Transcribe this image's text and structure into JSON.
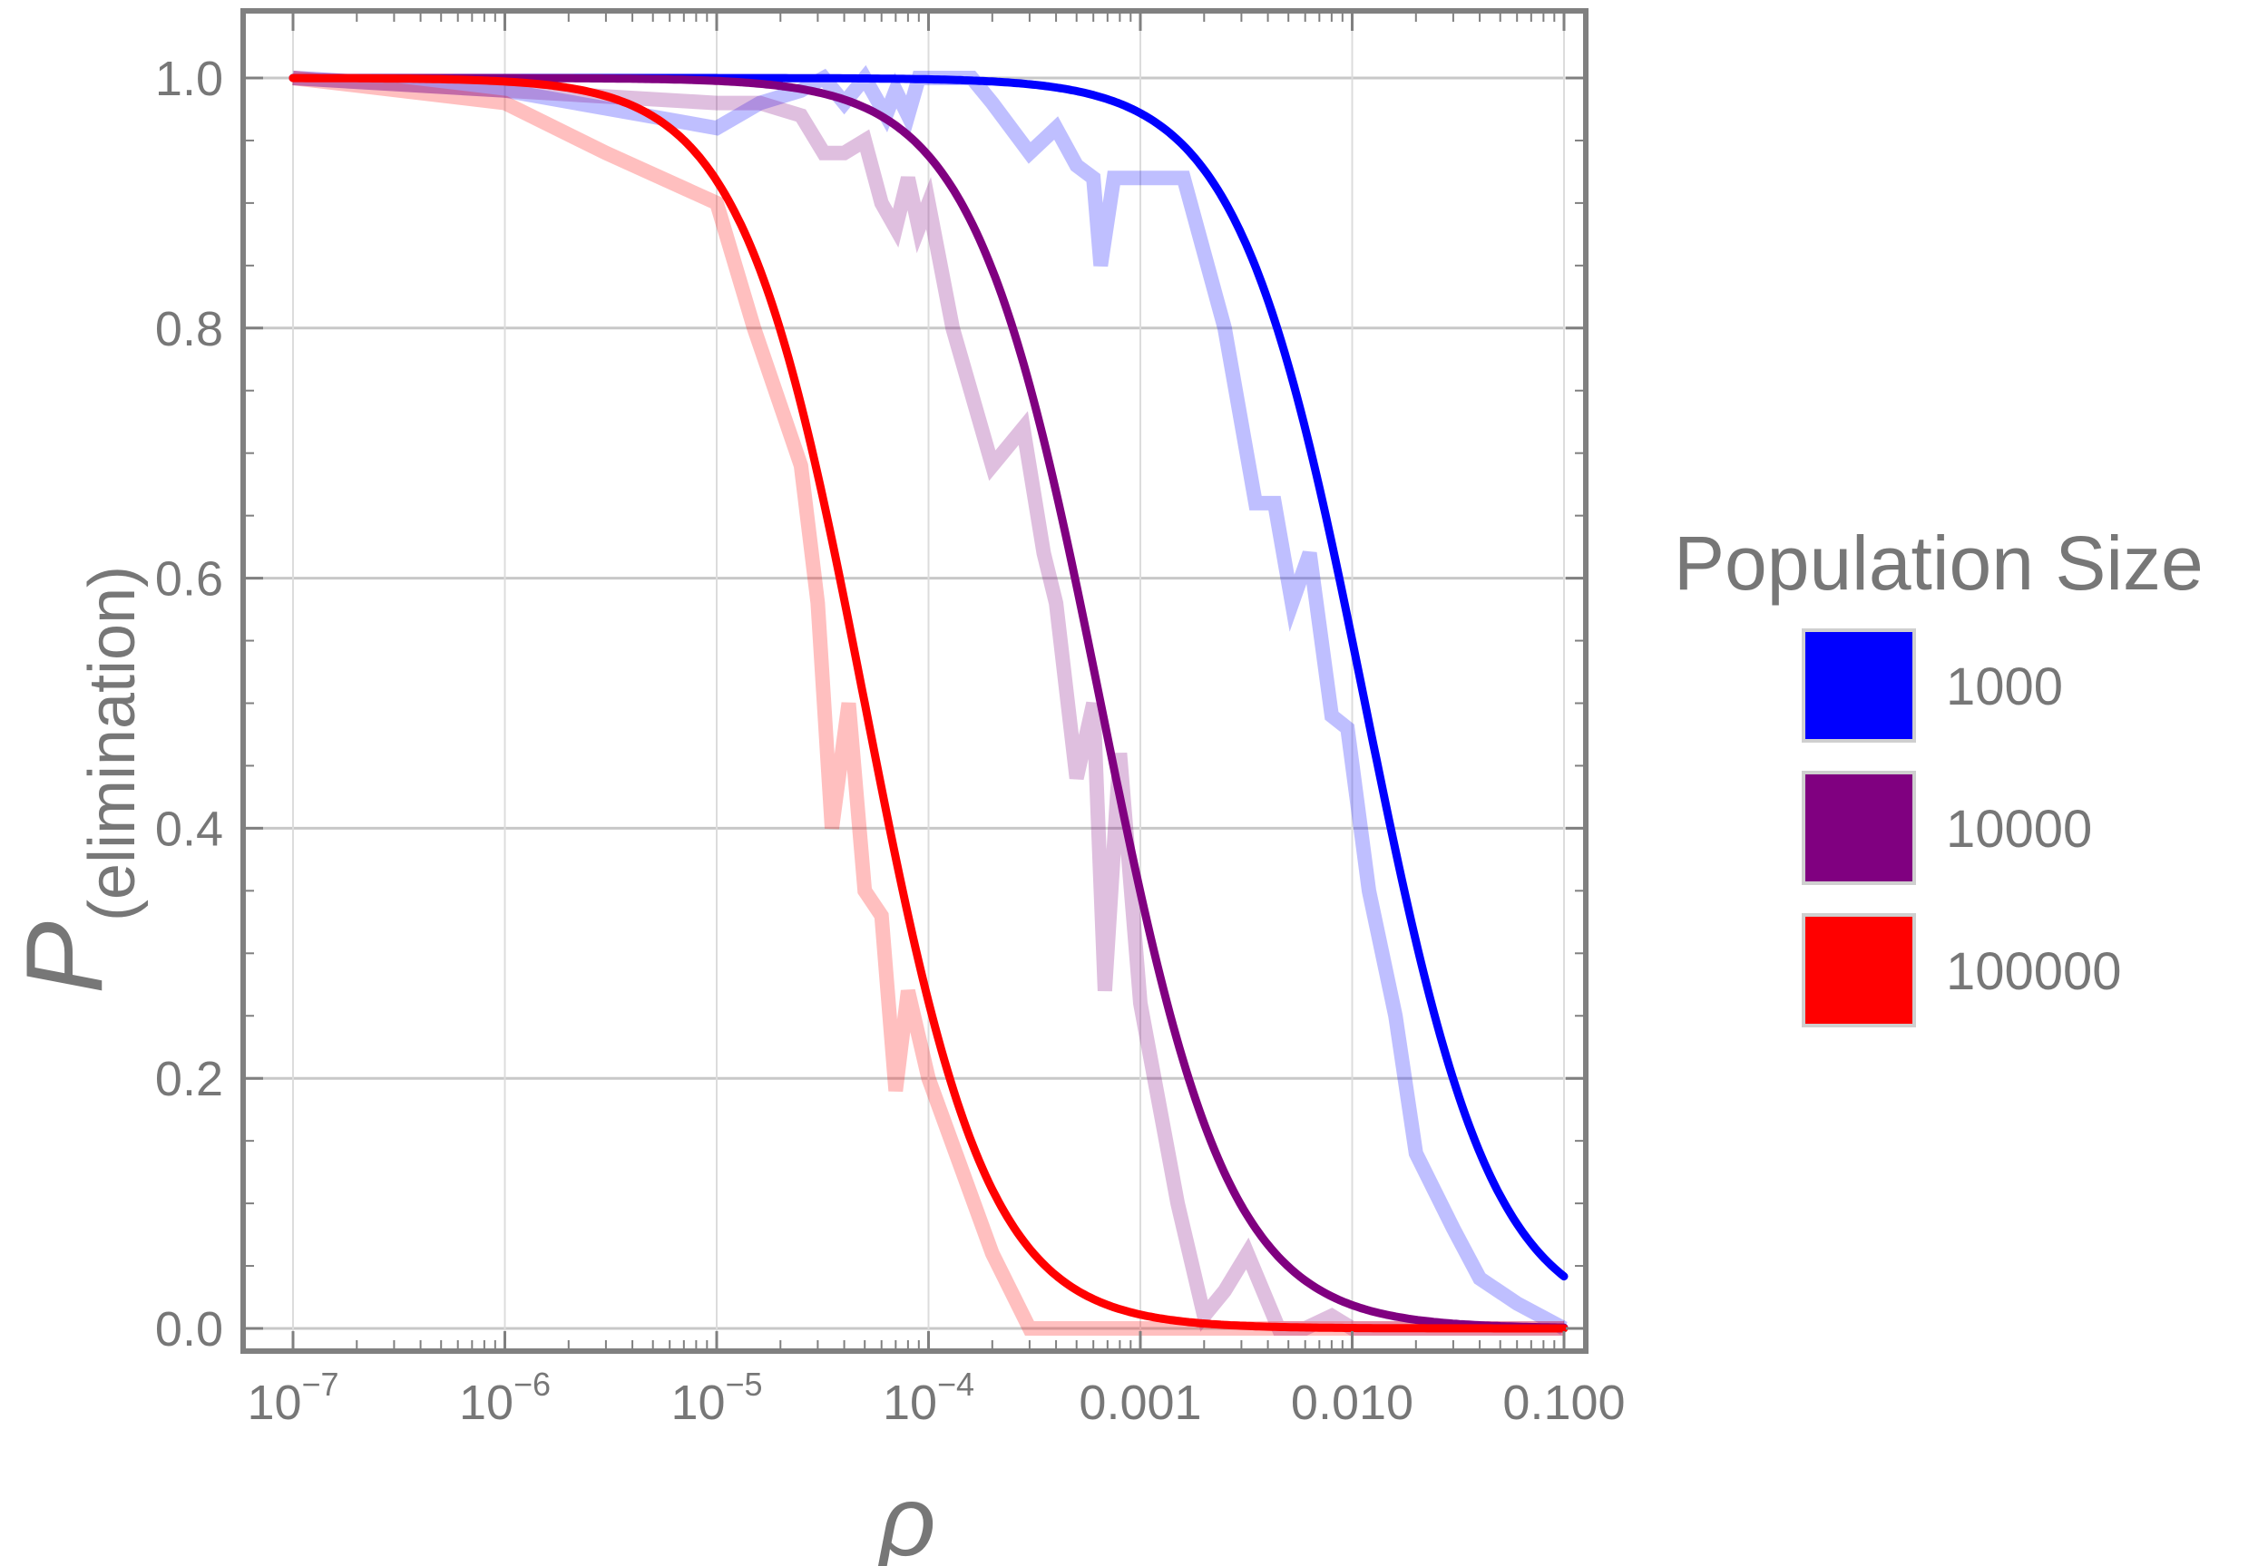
{
  "chart_data": {
    "type": "line",
    "xscale": "log",
    "xlim": [
      1e-07,
      0.1
    ],
    "ylim": [
      0,
      1
    ],
    "xlabel": "ρ",
    "ylabel": "P",
    "ylabel_subscript": "(elimination)",
    "grid": true,
    "legend": {
      "title": "Population Size",
      "position": "right"
    },
    "x_ticks": [
      {
        "value": 1e-07,
        "base": "10",
        "exp": "−7",
        "text": ""
      },
      {
        "value": 1e-06,
        "base": "10",
        "exp": "−6",
        "text": ""
      },
      {
        "value": 1e-05,
        "base": "10",
        "exp": "−5",
        "text": ""
      },
      {
        "value": 0.0001,
        "base": "10",
        "exp": "−4",
        "text": ""
      },
      {
        "value": 0.001,
        "base": "",
        "exp": "",
        "text": "0.001"
      },
      {
        "value": 0.01,
        "base": "",
        "exp": "",
        "text": "0.010"
      },
      {
        "value": 0.1,
        "base": "",
        "exp": "",
        "text": "0.100"
      }
    ],
    "y_ticks": [
      {
        "value": 0,
        "text": "0.0"
      },
      {
        "value": 0.2,
        "text": "0.2"
      },
      {
        "value": 0.4,
        "text": "0.4"
      },
      {
        "value": 0.6,
        "text": "0.6"
      },
      {
        "value": 0.8,
        "text": "0.8"
      },
      {
        "value": 1,
        "text": "1.0"
      }
    ],
    "series": [
      {
        "name": "1000",
        "color": "#0000ff",
        "fit": {
          "x50": 0.0115,
          "hill": 1.45
        },
        "simulated": [
          [
            1e-07,
            1.0
          ],
          [
            1e-06,
            0.99
          ],
          [
            1e-05,
            0.96
          ],
          [
            1.6e-05,
            0.98
          ],
          [
            2.5e-05,
            0.99
          ],
          [
            3.2e-05,
            1.0
          ],
          [
            4e-05,
            0.98
          ],
          [
            5e-05,
            1.0
          ],
          [
            6.3e-05,
            0.97
          ],
          [
            7e-05,
            0.99
          ],
          [
            8e-05,
            0.97
          ],
          [
            9e-05,
            1.0
          ],
          [
            0.000125,
            1.0
          ],
          [
            0.00016,
            1.0
          ],
          [
            0.0002,
            0.98
          ],
          [
            0.0003,
            0.94
          ],
          [
            0.0004,
            0.96
          ],
          [
            0.0005,
            0.93
          ],
          [
            0.0006,
            0.92
          ],
          [
            0.00065,
            0.85
          ],
          [
            0.00075,
            0.92
          ],
          [
            0.001,
            0.92
          ],
          [
            0.0016,
            0.92
          ],
          [
            0.0025,
            0.8
          ],
          [
            0.0035,
            0.66
          ],
          [
            0.0043,
            0.66
          ],
          [
            0.0052,
            0.58
          ],
          [
            0.0063,
            0.62
          ],
          [
            0.008,
            0.49
          ],
          [
            0.0095,
            0.48
          ],
          [
            0.012,
            0.35
          ],
          [
            0.016,
            0.25
          ],
          [
            0.02,
            0.14
          ],
          [
            0.03,
            0.08
          ],
          [
            0.04,
            0.04
          ],
          [
            0.06,
            0.02
          ],
          [
            0.1,
            0.0
          ]
        ]
      },
      {
        "name": "10000",
        "color": "#800080",
        "fit": {
          "x50": 0.00065,
          "hill": 1.45
        },
        "simulated": [
          [
            1e-07,
            1.0
          ],
          [
            1e-06,
            0.99
          ],
          [
            1e-05,
            0.98
          ],
          [
            1.6e-05,
            0.98
          ],
          [
            2.5e-05,
            0.97
          ],
          [
            3.2e-05,
            0.94
          ],
          [
            4e-05,
            0.94
          ],
          [
            5e-05,
            0.95
          ],
          [
            6e-05,
            0.9
          ],
          [
            7e-05,
            0.88
          ],
          [
            8e-05,
            0.92
          ],
          [
            9e-05,
            0.88
          ],
          [
            0.0001,
            0.9
          ],
          [
            0.00013,
            0.8
          ],
          [
            0.0002,
            0.69
          ],
          [
            0.00028,
            0.72
          ],
          [
            0.00035,
            0.62
          ],
          [
            0.0004,
            0.58
          ],
          [
            0.0005,
            0.44
          ],
          [
            0.0006,
            0.5
          ],
          [
            0.00068,
            0.27
          ],
          [
            0.0008,
            0.46
          ],
          [
            0.001,
            0.26
          ],
          [
            0.0015,
            0.1
          ],
          [
            0.002,
            0.01
          ],
          [
            0.0025,
            0.03
          ],
          [
            0.0032,
            0.06
          ],
          [
            0.0045,
            0.0
          ],
          [
            0.006,
            0.0
          ],
          [
            0.008,
            0.01
          ],
          [
            0.01,
            0.0
          ],
          [
            0.1,
            0.0
          ]
        ]
      },
      {
        "name": "100000",
        "color": "#ff0000",
        "fit": {
          "x50": 5e-05,
          "hill": 1.5
        },
        "simulated": [
          [
            1e-07,
            1.0
          ],
          [
            1e-06,
            0.98
          ],
          [
            3e-06,
            0.94
          ],
          [
            1e-05,
            0.9
          ],
          [
            1.5e-05,
            0.8
          ],
          [
            2.5e-05,
            0.69
          ],
          [
            3e-05,
            0.58
          ],
          [
            3.5e-05,
            0.4
          ],
          [
            4.2e-05,
            0.5
          ],
          [
            5e-05,
            0.35
          ],
          [
            6e-05,
            0.33
          ],
          [
            7e-05,
            0.19
          ],
          [
            8e-05,
            0.27
          ],
          [
            0.0001,
            0.2
          ],
          [
            0.0002,
            0.06
          ],
          [
            0.0003,
            0.0
          ],
          [
            0.001,
            0.0
          ],
          [
            0.1,
            0.0
          ]
        ]
      }
    ]
  }
}
